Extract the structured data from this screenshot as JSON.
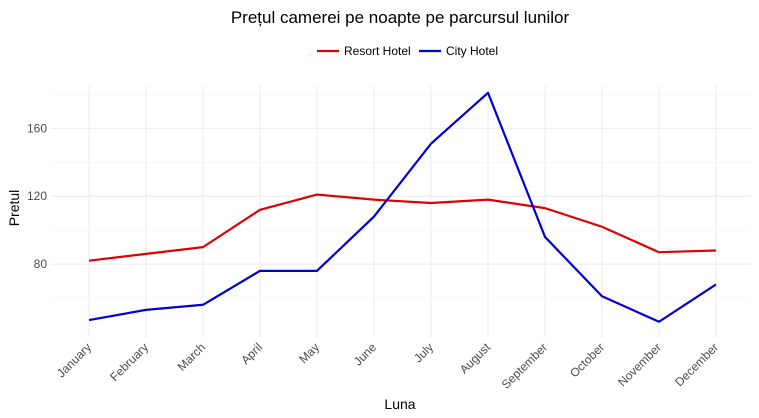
{
  "chart_data": {
    "type": "line",
    "title": "Prețul camerei pe noapte pe parcursul lunilor",
    "xlabel": "Luna",
    "ylabel": "Pretul",
    "categories": [
      "January",
      "February",
      "March",
      "April",
      "May",
      "June",
      "July",
      "August",
      "September",
      "October",
      "November",
      "December"
    ],
    "ylim": [
      37,
      185
    ],
    "yticks": [
      80,
      120,
      160
    ],
    "grid": true,
    "legend_position": "top",
    "series": [
      {
        "name": "Resort Hotel",
        "color": "#e00000",
        "values": [
          82,
          86,
          90,
          112,
          121,
          118,
          116,
          118,
          113,
          102,
          87,
          88
        ]
      },
      {
        "name": "City Hotel",
        "color": "#0000d6",
        "values": [
          47,
          53,
          56,
          76,
          76,
          108,
          151,
          181,
          96,
          61,
          46,
          68
        ]
      }
    ]
  }
}
